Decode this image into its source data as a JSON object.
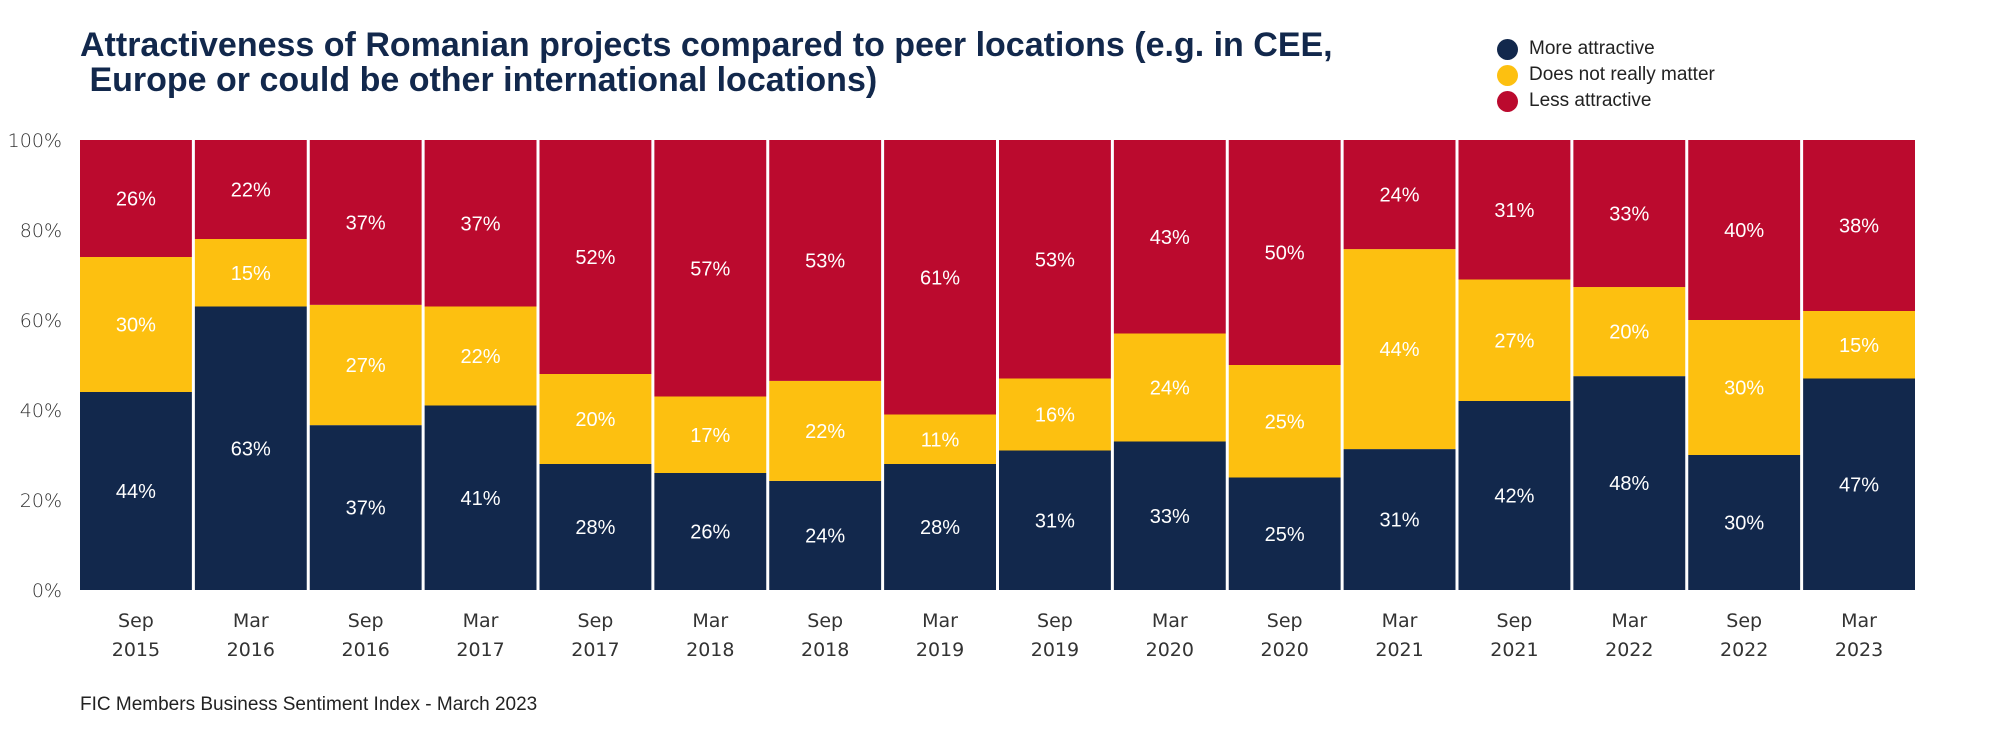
{
  "title": "Attractiveness of Romanian projects compared to peer locations (e.g. in CEE,\n Europe or could be other international locations)",
  "footer": "FIC Members Business Sentiment Index - March 2023",
  "legend": [
    {
      "label": "More attractive",
      "color": "#12284c"
    },
    {
      "label": "Does not really matter",
      "color": "#fdc010"
    },
    {
      "label": "Less attractive",
      "color": "#bb0a2e"
    }
  ],
  "chart_data": {
    "type": "bar",
    "stacked": true,
    "normalized_100pct": true,
    "title": "Attractiveness of Romanian projects compared to peer locations (e.g. in CEE, Europe or could be other international locations)",
    "xlabel": "",
    "ylabel": "",
    "ylim": [
      0,
      100
    ],
    "y_ticks": [
      "0%",
      "20%",
      "40%",
      "60%",
      "80%",
      "100%"
    ],
    "grid": false,
    "legend_position": "top-right",
    "categories": [
      [
        "Sep",
        "2015"
      ],
      [
        "Mar",
        "2016"
      ],
      [
        "Sep",
        "2016"
      ],
      [
        "Mar",
        "2017"
      ],
      [
        "Sep",
        "2017"
      ],
      [
        "Mar",
        "2018"
      ],
      [
        "Sep",
        "2018"
      ],
      [
        "Mar",
        "2019"
      ],
      [
        "Sep",
        "2019"
      ],
      [
        "Mar",
        "2020"
      ],
      [
        "Sep",
        "2020"
      ],
      [
        "Mar",
        "2021"
      ],
      [
        "Sep",
        "2021"
      ],
      [
        "Mar",
        "2022"
      ],
      [
        "Sep",
        "2022"
      ],
      [
        "Mar",
        "2023"
      ]
    ],
    "series": [
      {
        "name": "More attractive",
        "color": "#12284c",
        "values": [
          44,
          63,
          37,
          41,
          28,
          26,
          24,
          28,
          31,
          33,
          25,
          31,
          42,
          48,
          30,
          47
        ]
      },
      {
        "name": "Does not really matter",
        "color": "#fdc010",
        "values": [
          30,
          15,
          27,
          22,
          20,
          17,
          22,
          11,
          16,
          24,
          25,
          44,
          27,
          20,
          30,
          15
        ]
      },
      {
        "name": "Less attractive",
        "color": "#bb0a2e",
        "values": [
          26,
          22,
          37,
          37,
          52,
          57,
          53,
          61,
          53,
          43,
          50,
          24,
          31,
          33,
          40,
          38
        ]
      }
    ]
  }
}
